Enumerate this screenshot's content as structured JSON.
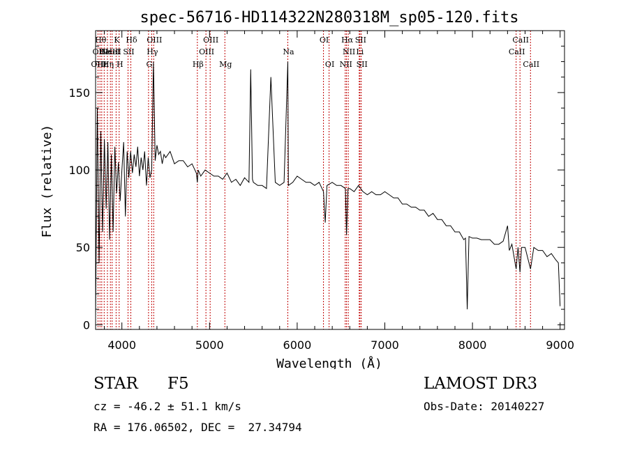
{
  "chart_data": {
    "type": "line",
    "title": "spec-56716-HD114322N280318M_sp05-120.fits",
    "xlabel": "Wavelength (Å)",
    "ylabel": "Flux (relative)",
    "xlim": [
      3700,
      9050
    ],
    "ylim": [
      -3,
      190
    ],
    "xticks": [
      4000,
      5000,
      6000,
      7000,
      8000,
      9000
    ],
    "yticks": [
      0,
      50,
      100,
      150
    ],
    "xtick_labels": [
      "4000",
      "5000",
      "6000",
      "7000",
      "8000",
      "9000"
    ],
    "ytick_labels": [
      "0",
      "50",
      "100",
      "150"
    ],
    "grid": false,
    "series": [
      {
        "name": "flux",
        "x": [
          3700,
          3720,
          3740,
          3760,
          3780,
          3800,
          3820,
          3840,
          3860,
          3880,
          3900,
          3920,
          3940,
          3960,
          3980,
          4000,
          4020,
          4040,
          4060,
          4080,
          4100,
          4120,
          4140,
          4160,
          4180,
          4200,
          4220,
          4240,
          4260,
          4280,
          4300,
          4320,
          4340,
          4360,
          4380,
          4400,
          4420,
          4440,
          4460,
          4480,
          4500,
          4550,
          4600,
          4650,
          4700,
          4750,
          4800,
          4850,
          4861,
          4870,
          4900,
          4950,
          5000,
          5050,
          5100,
          5150,
          5200,
          5250,
          5300,
          5350,
          5400,
          5450,
          5470,
          5490,
          5500,
          5550,
          5600,
          5650,
          5700,
          5750,
          5800,
          5850,
          5893,
          5900,
          5950,
          6000,
          6050,
          6100,
          6150,
          6200,
          6250,
          6300,
          6320,
          6340,
          6400,
          6450,
          6500,
          6550,
          6563,
          6580,
          6600,
          6650,
          6700,
          6750,
          6800,
          6850,
          6900,
          6950,
          7000,
          7050,
          7100,
          7150,
          7200,
          7250,
          7300,
          7350,
          7400,
          7450,
          7500,
          7550,
          7600,
          7650,
          7700,
          7750,
          7800,
          7850,
          7900,
          7920,
          7940,
          7960,
          8000,
          8050,
          8100,
          8150,
          8200,
          8250,
          8300,
          8350,
          8400,
          8420,
          8450,
          8498,
          8520,
          8542,
          8560,
          8600,
          8662,
          8700,
          8750,
          8800,
          8850,
          8900,
          8950,
          8980,
          9000
        ],
        "y": [
          5,
          140,
          40,
          125,
          60,
          120,
          75,
          118,
          55,
          110,
          60,
          115,
          85,
          105,
          80,
          100,
          118,
          70,
          112,
          95,
          112,
          98,
          110,
          102,
          115,
          96,
          108,
          100,
          112,
          90,
          108,
          95,
          100,
          170,
          106,
          116,
          110,
          112,
          104,
          110,
          108,
          112,
          104,
          106,
          106,
          102,
          104,
          98,
          92,
          100,
          96,
          100,
          98,
          96,
          96,
          94,
          98,
          92,
          94,
          90,
          95,
          92,
          165,
          94,
          92,
          90,
          90,
          88,
          160,
          92,
          90,
          92,
          170,
          90,
          92,
          96,
          94,
          92,
          92,
          90,
          92,
          86,
          66,
          90,
          92,
          90,
          90,
          88,
          58,
          88,
          88,
          86,
          90,
          86,
          84,
          86,
          84,
          84,
          86,
          84,
          82,
          82,
          78,
          78,
          76,
          76,
          74,
          74,
          70,
          72,
          68,
          68,
          64,
          64,
          60,
          60,
          55,
          56,
          10,
          57,
          56,
          56,
          55,
          55,
          55,
          52,
          52,
          54,
          64,
          48,
          52,
          36,
          50,
          34,
          50,
          50,
          36,
          50,
          48,
          48,
          44,
          46,
          42,
          40,
          12
        ]
      }
    ],
    "lines": [
      {
        "group": 1,
        "x": 3727,
        "rows": [
          {
            "label": "OII",
            "row": 1
          },
          {
            "label": "OIII",
            "row": 2
          }
        ]
      },
      {
        "group": 1,
        "x": 3750,
        "rows": [
          {
            "label": "Hθ",
            "row": 0
          }
        ]
      },
      {
        "group": 1,
        "x": 3770,
        "rows": [
          {
            "label": "Hε",
            "row": 2
          }
        ]
      },
      {
        "group": 1,
        "x": 3798,
        "rows": [
          {
            "label": "He",
            "row": 1
          }
        ]
      },
      {
        "group": 1,
        "x": 3835,
        "rows": [
          {
            "label": "Hη",
            "row": 2
          }
        ]
      },
      {
        "group": 1,
        "x": 3869,
        "rows": [
          {
            "label": "NeIII",
            "row": 1
          }
        ]
      },
      {
        "group": 1,
        "x": 3889,
        "rows": [
          {
            "label": "HeI",
            "row": 1
          }
        ]
      },
      {
        "group": 1,
        "x": 3934,
        "rows": [
          {
            "label": "K",
            "row": 0
          }
        ]
      },
      {
        "group": 1,
        "x": 3969,
        "rows": [
          {
            "label": "H",
            "row": 2
          }
        ]
      },
      {
        "group": 1,
        "x": 4070,
        "rows": [
          {
            "label": "SII",
            "row": 1
          }
        ]
      },
      {
        "group": 1,
        "x": 4102,
        "rows": [
          {
            "label": "Hδ",
            "row": 0
          }
        ]
      },
      {
        "group": 1,
        "x": 4304,
        "rows": [
          {
            "label": "G",
            "row": 2
          }
        ]
      },
      {
        "group": 1,
        "x": 4340,
        "rows": [
          {
            "label": "Hγ",
            "row": 1
          }
        ]
      },
      {
        "group": 1,
        "x": 4363,
        "rows": [
          {
            "label": "OIII",
            "row": 0
          }
        ]
      },
      {
        "group": 1,
        "x": 4861,
        "rows": [
          {
            "label": "Hβ",
            "row": 2
          }
        ]
      },
      {
        "group": 1,
        "x": 4959,
        "rows": [
          {
            "label": "OIII",
            "row": 1
          }
        ]
      },
      {
        "group": 1,
        "x": 5007,
        "rows": [
          {
            "label": "OIII",
            "row": 0
          }
        ]
      },
      {
        "group": 1,
        "x": 5175,
        "rows": [
          {
            "label": "Mg",
            "row": 2
          }
        ]
      },
      {
        "group": 1,
        "x": 5893,
        "rows": [
          {
            "label": "Na",
            "row": 1
          }
        ]
      },
      {
        "group": 1,
        "x": 6300,
        "rows": [
          {
            "label": "OI",
            "row": 0
          }
        ]
      },
      {
        "group": 1,
        "x": 6364,
        "rows": [
          {
            "label": "OI",
            "row": 2
          }
        ]
      },
      {
        "group": 1,
        "x": 6548,
        "rows": [
          {
            "label": "NII",
            "row": 2
          }
        ]
      },
      {
        "group": 1,
        "x": 6563,
        "rows": [
          {
            "label": "Hα",
            "row": 0
          }
        ]
      },
      {
        "group": 1,
        "x": 6583,
        "rows": [
          {
            "label": "NII",
            "row": 1
          }
        ]
      },
      {
        "group": 1,
        "x": 6708,
        "rows": [
          {
            "label": "Li",
            "row": 1
          }
        ]
      },
      {
        "group": 1,
        "x": 6716,
        "rows": [
          {
            "label": "SII",
            "row": 0
          }
        ]
      },
      {
        "group": 1,
        "x": 6731,
        "rows": [
          {
            "label": "SII",
            "row": 2
          }
        ]
      },
      {
        "group": 1,
        "x": 8498,
        "rows": [
          {
            "label": "CaII",
            "row": 1
          }
        ]
      },
      {
        "group": 1,
        "x": 8542,
        "rows": [
          {
            "label": "CaII",
            "row": 0
          }
        ]
      },
      {
        "group": 1,
        "x": 8662,
        "rows": [
          {
            "label": "CaII",
            "row": 2
          }
        ]
      }
    ],
    "line_color": "#c00000"
  },
  "info": {
    "object_type": "STAR",
    "subclass": "F5",
    "survey": "LAMOST DR3",
    "redshift": "cz = -46.2 ± 51.1 km/s",
    "obs_date": "Obs-Date: 20140227",
    "coords": "RA = 176.06502, DEC =  27.34794"
  }
}
